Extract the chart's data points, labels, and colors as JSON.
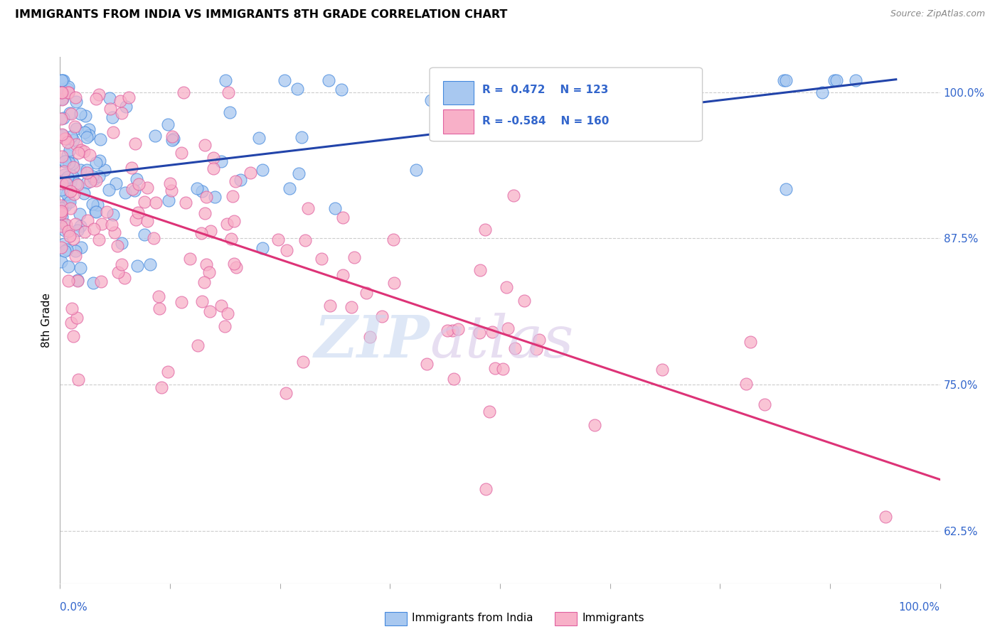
{
  "title": "IMMIGRANTS FROM INDIA VS IMMIGRANTS 8TH GRADE CORRELATION CHART",
  "source": "Source: ZipAtlas.com",
  "ylabel": "8th Grade",
  "ytick_labels": [
    "100.0%",
    "87.5%",
    "75.0%",
    "62.5%"
  ],
  "ytick_values": [
    1.0,
    0.875,
    0.75,
    0.625
  ],
  "xlim": [
    0.0,
    1.0
  ],
  "ylim": [
    0.58,
    1.03
  ],
  "legend_R_blue": "R =  0.472",
  "legend_N_blue": "N = 123",
  "legend_R_pink": "R = -0.584",
  "legend_N_pink": "N = 160",
  "blue_face_color": "#a8c8f0",
  "blue_edge_color": "#4488dd",
  "pink_face_color": "#f8b0c8",
  "pink_edge_color": "#e060a0",
  "blue_line_color": "#2244aa",
  "pink_line_color": "#dd3377",
  "watermark_zip_color": "#c8d8f0",
  "watermark_atlas_color": "#d8c8e8",
  "grid_color": "#cccccc",
  "tick_color": "#3366cc",
  "background_color": "#ffffff"
}
